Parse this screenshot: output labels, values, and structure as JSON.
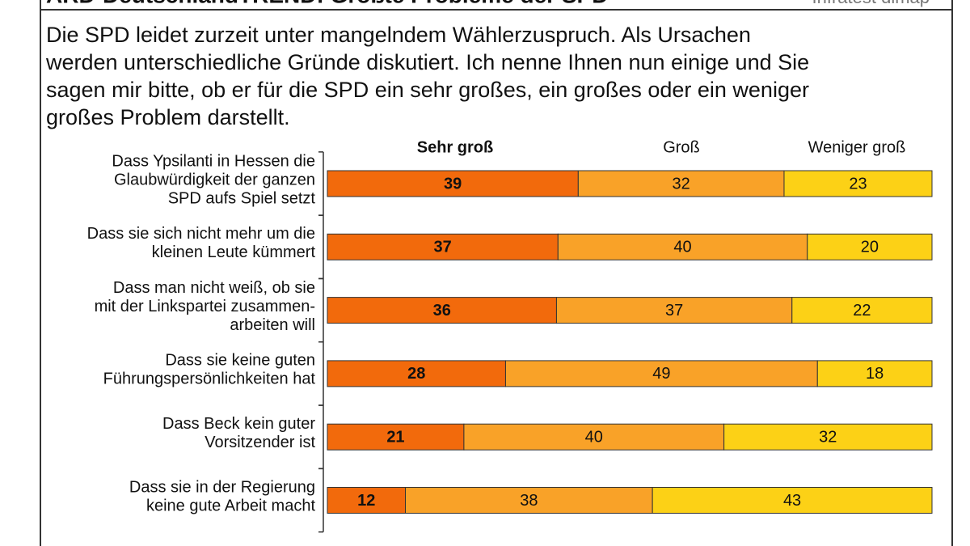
{
  "chart_data": {
    "type": "stacked-bar-100",
    "title": "ARD-DeutschlandTREND: Größte Probleme der SPD",
    "source": "Infratest dimap",
    "question": [
      "Die SPD leidet zurzeit unter mangelndem Wählerzuspruch. Als Ursachen",
      "werden unterschiedliche Gründe diskutiert. Ich nenne Ihnen nun einige und Sie",
      "sagen mir bitte, ob er für die SPD ein sehr großes, ein großes oder ein weniger",
      "großes Problem darstellt."
    ],
    "categories": [
      [
        "Dass Ypsilanti in Hessen die",
        "Glaubwürdigkeit der ganzen",
        "SPD aufs Spiel setzt"
      ],
      [
        "Dass sie sich nicht mehr um die",
        "kleinen Leute kümmert"
      ],
      [
        "Dass man nicht weiß, ob sie",
        "mit der Linkspartei zusammen-",
        "arbeiten will"
      ],
      [
        "Dass sie keine guten",
        "Führungspersönlichkeiten hat"
      ],
      [
        "Dass Beck kein guter",
        "Vorsitzender ist"
      ],
      [
        "Dass sie in der Regierung",
        "keine gute Arbeit macht"
      ]
    ],
    "series": [
      {
        "name": "Sehr groß",
        "color": "#f26a0c",
        "values": [
          39,
          37,
          36,
          28,
          21,
          12
        ]
      },
      {
        "name": "Groß",
        "color": "#f9a228",
        "values": [
          32,
          40,
          37,
          49,
          40,
          38
        ]
      },
      {
        "name": "Weniger groß",
        "color": "#fcd116",
        "values": [
          23,
          20,
          22,
          18,
          32,
          43
        ]
      }
    ]
  }
}
